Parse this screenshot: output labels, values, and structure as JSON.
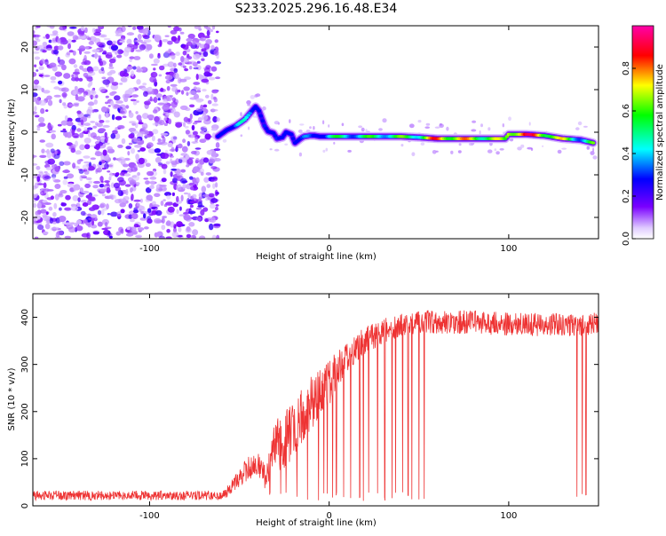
{
  "title": "S233.2025.296.16.48.E34",
  "chart_data": [
    {
      "type": "heatmap",
      "xlabel": "Height of straight line (km)",
      "ylabel": "Frequency (Hz)",
      "xlim": [
        -165,
        150
      ],
      "ylim": [
        -25,
        25
      ],
      "xticks": [
        -100,
        0,
        100
      ],
      "xtick_labels": [
        "-100",
        "0",
        "100"
      ],
      "yticks": [
        -20,
        -10,
        0,
        10,
        20
      ],
      "ytick_labels": [
        "-20",
        "-10",
        "0",
        "10",
        "20"
      ],
      "noise_region_x": [
        -165,
        -62
      ],
      "ridge": {
        "x": [
          -62,
          -57,
          -52,
          -47,
          -44,
          -41,
          -39,
          -36,
          -34,
          -31,
          -29,
          -26,
          -24,
          -21,
          -19,
          -16,
          -14,
          -11,
          -8,
          -5,
          0,
          10,
          20,
          30,
          40,
          50,
          60,
          70,
          80,
          90,
          98,
          100,
          110,
          120,
          130,
          140,
          147
        ],
        "freq": [
          -1,
          0.5,
          1.5,
          3,
          4.5,
          6,
          5,
          1.5,
          0.2,
          -0.2,
          -1.5,
          -1.2,
          0,
          -0.5,
          -2.5,
          -1.5,
          -1,
          -0.8,
          -0.8,
          -1,
          -1,
          -1,
          -1,
          -1,
          -1,
          -1.2,
          -1.5,
          -1.5,
          -1.5,
          -1.5,
          -1.5,
          -0.5,
          -0.5,
          -0.8,
          -1.5,
          -1.8,
          -2.5
        ],
        "amplitude": [
          0.2,
          0.3,
          0.4,
          0.5,
          0.55,
          0.5,
          0.35,
          0.45,
          0.3,
          0.25,
          0.35,
          0.25,
          0.4,
          0.3,
          0.25,
          0.3,
          0.35,
          0.4,
          0.45,
          0.5,
          0.55,
          0.6,
          0.6,
          0.65,
          0.65,
          0.7,
          0.9,
          0.85,
          0.8,
          0.75,
          0.7,
          0.9,
          0.95,
          0.85,
          0.75,
          0.6,
          0.65
        ]
      },
      "colorbar": {
        "label": "Normalized spectral amplitude",
        "ticks": [
          0.0,
          0.2,
          0.4,
          0.6,
          0.8
        ],
        "tick_labels": [
          "0.0",
          "0.2",
          "0.4",
          "0.6",
          "0.8"
        ],
        "range": [
          0,
          1
        ]
      }
    },
    {
      "type": "line",
      "color": "#ee3333",
      "xlabel": "Height of straight line (km)",
      "ylabel": "SNR (10 * v/v)",
      "xlim": [
        -165,
        150
      ],
      "ylim": [
        0,
        450
      ],
      "xticks": [
        -100,
        0,
        100
      ],
      "xtick_labels": [
        "-100",
        "0",
        "100"
      ],
      "yticks": [
        0,
        100,
        200,
        300,
        400
      ],
      "ytick_labels": [
        "0",
        "100",
        "200",
        "300",
        "400"
      ],
      "envelope": {
        "x": [
          -165,
          -60,
          -55,
          -50,
          -45,
          -40,
          -35,
          -30,
          -25,
          -20,
          -15,
          -10,
          -5,
          0,
          5,
          10,
          20,
          30,
          40,
          50,
          60,
          80,
          100,
          120,
          140,
          150
        ],
        "mean": [
          22,
          22,
          35,
          60,
          80,
          90,
          60,
          120,
          140,
          160,
          190,
          220,
          240,
          260,
          290,
          320,
          350,
          370,
          385,
          390,
          390,
          390,
          385,
          385,
          385,
          385
        ],
        "spread": [
          10,
          10,
          15,
          20,
          25,
          25,
          30,
          60,
          60,
          60,
          60,
          60,
          50,
          50,
          40,
          35,
          30,
          28,
          25,
          25,
          25,
          25,
          25,
          25,
          25,
          25
        ]
      },
      "dropouts_x": [
        -33,
        -27,
        -24,
        -18,
        -12,
        -6,
        -3,
        -1,
        2,
        4,
        8,
        12,
        17,
        19,
        22,
        27,
        31,
        35,
        37,
        41,
        44,
        46,
        50,
        53,
        138,
        141,
        143
      ]
    }
  ]
}
